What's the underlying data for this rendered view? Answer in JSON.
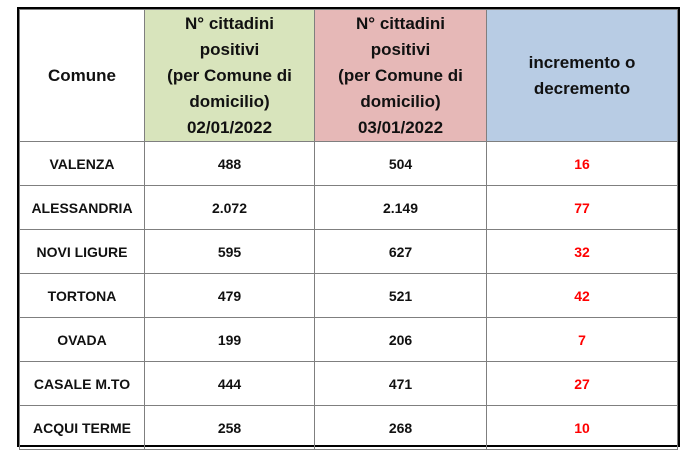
{
  "header": {
    "comune": "Comune",
    "col_a": [
      "N° cittadini",
      "positivi",
      "(per Comune di",
      "domicilio)",
      "02/01/2022"
    ],
    "col_b": [
      "N° cittadini",
      "positivi",
      "(per Comune di",
      "domicilio)",
      "03/01/2022"
    ],
    "col_diff": [
      "incremento o",
      "decremento"
    ]
  },
  "colors": {
    "col_a_bg": "#d8e4bc",
    "col_b_bg": "#e6b8b7",
    "col_diff_bg": "#b8cce4",
    "diff_text": "#ff0000"
  },
  "rows": [
    {
      "comune": "VALENZA",
      "a": "488",
      "b": "504",
      "diff": "16"
    },
    {
      "comune": "ALESSANDRIA",
      "a": "2.072",
      "b": "2.149",
      "diff": "77"
    },
    {
      "comune": "NOVI LIGURE",
      "a": "595",
      "b": "627",
      "diff": "32"
    },
    {
      "comune": "TORTONA",
      "a": "479",
      "b": "521",
      "diff": "42"
    },
    {
      "comune": "OVADA",
      "a": "199",
      "b": "206",
      "diff": "7"
    },
    {
      "comune": "CASALE M.TO",
      "a": "444",
      "b": "471",
      "diff": "27"
    },
    {
      "comune": "ACQUI TERME",
      "a": "258",
      "b": "268",
      "diff": "10"
    }
  ]
}
